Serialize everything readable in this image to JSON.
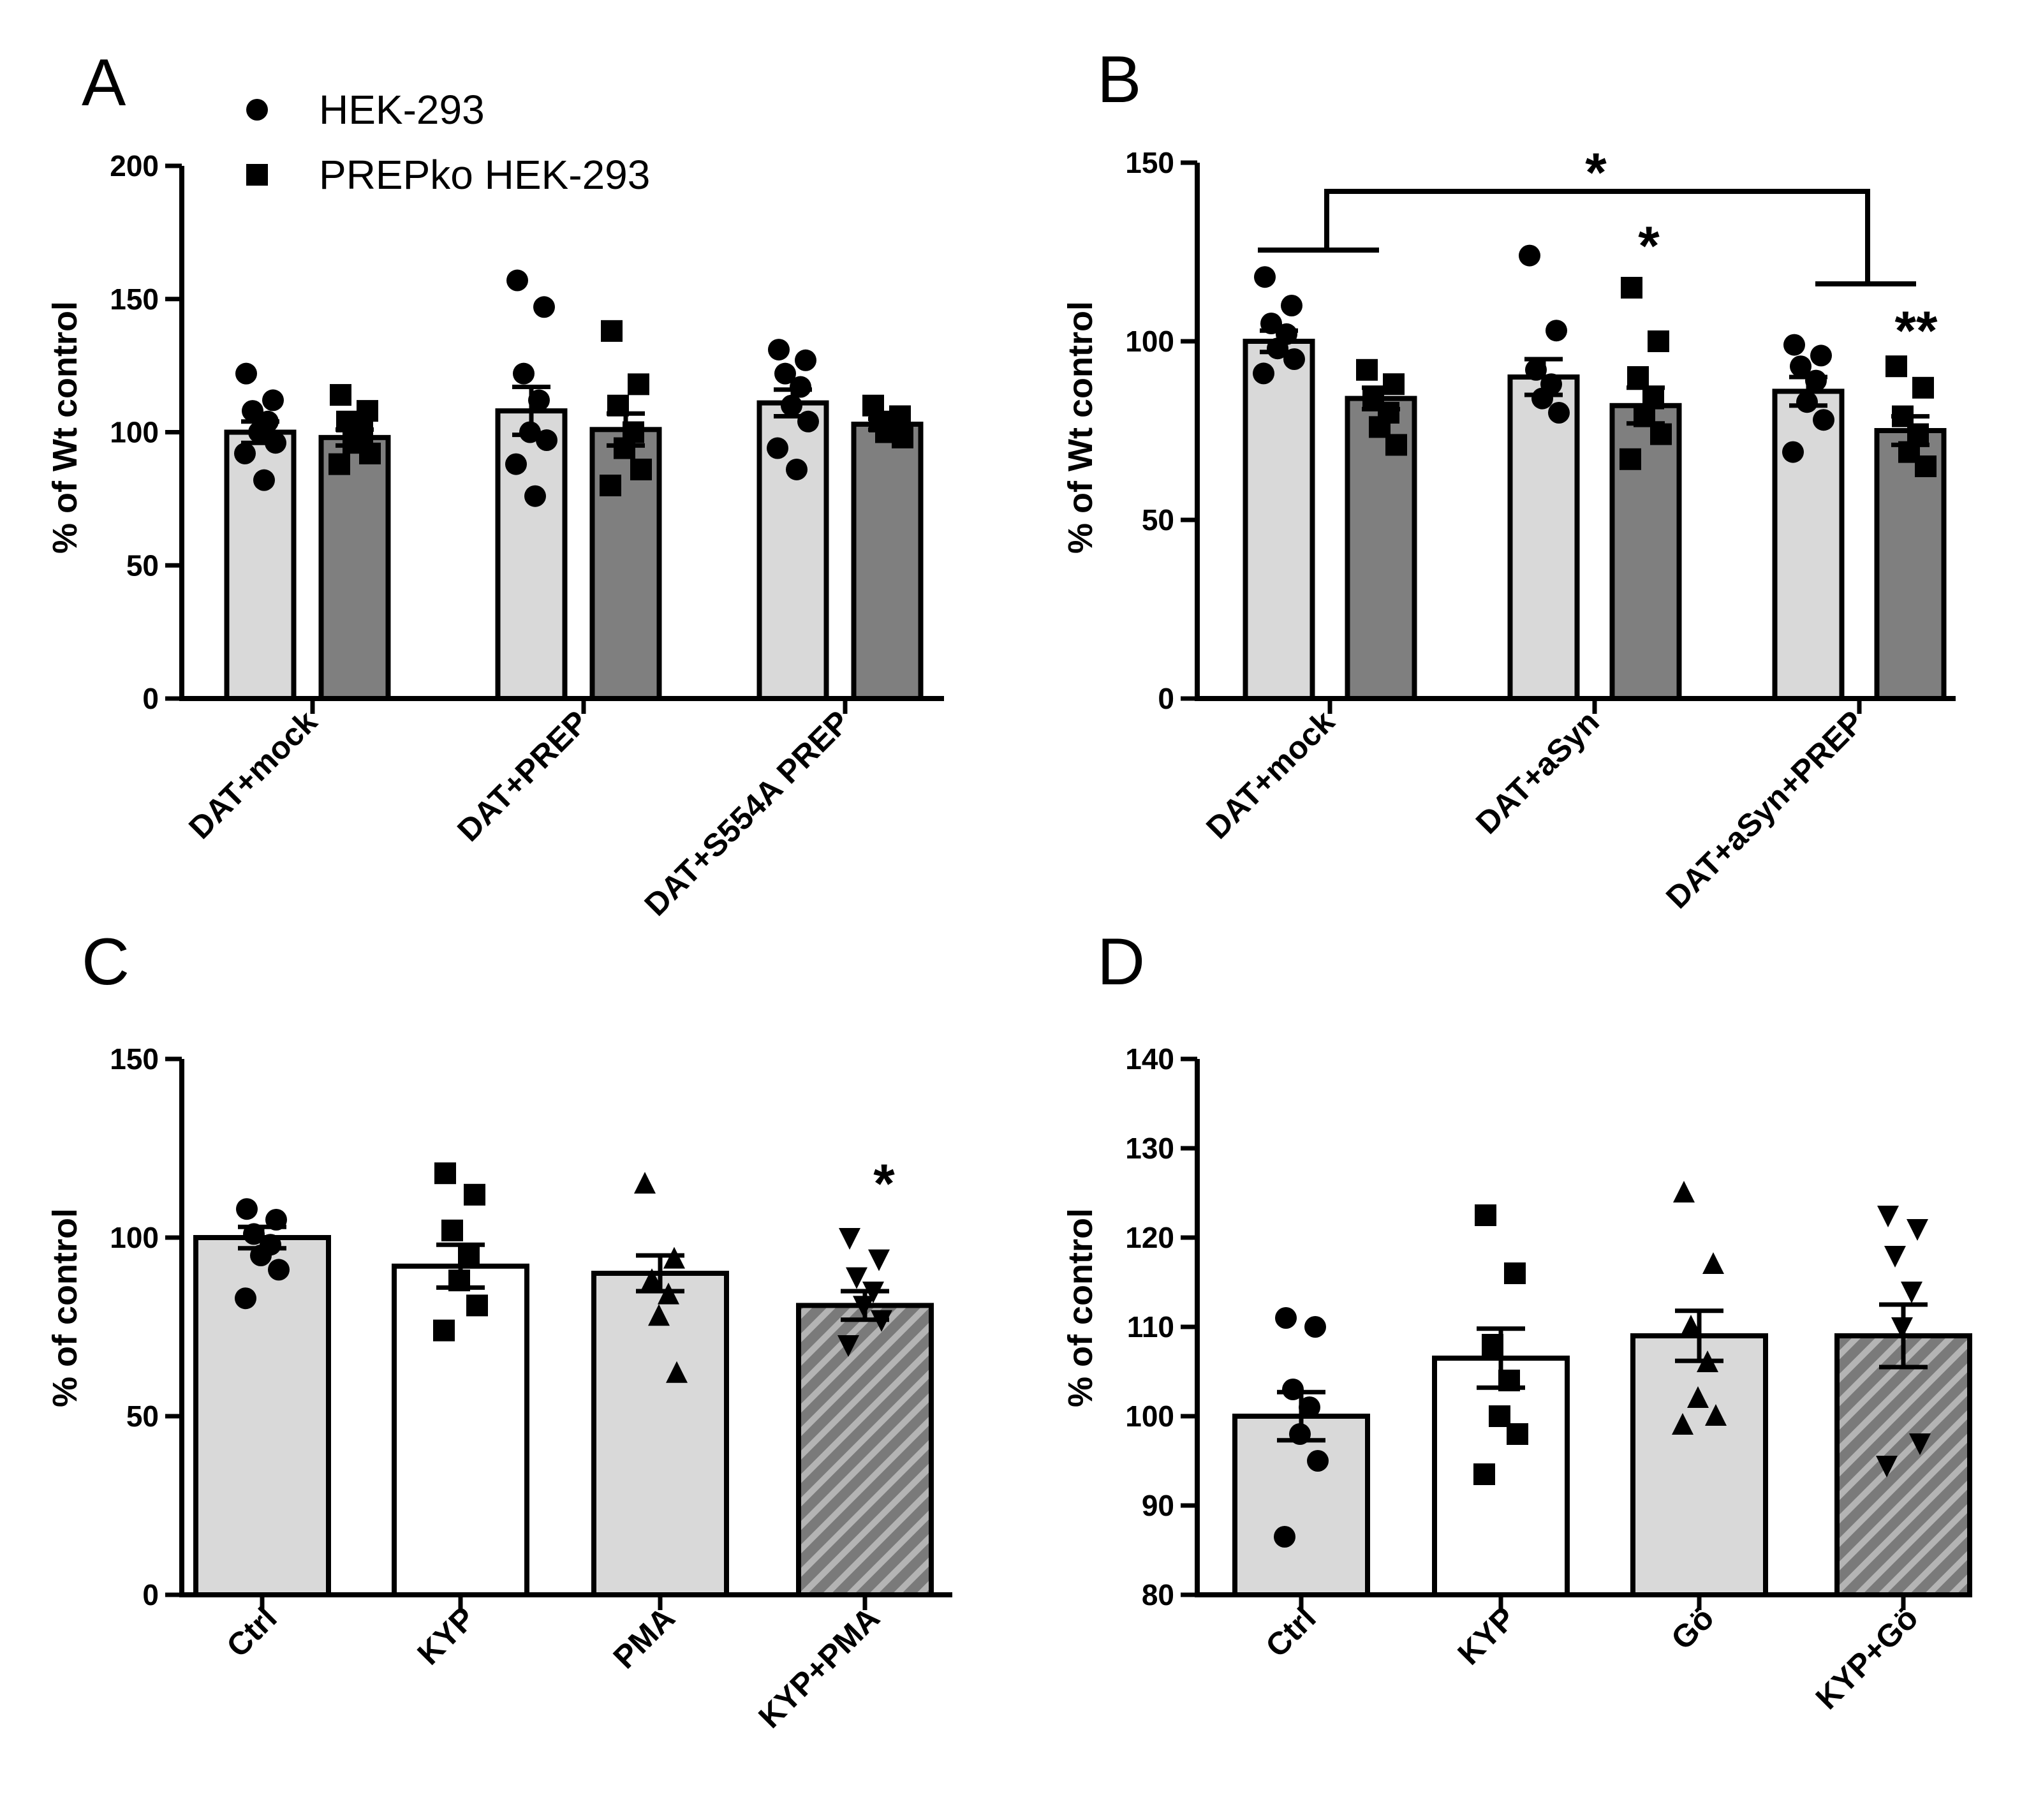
{
  "colors": {
    "hek": "#d9d9d9",
    "prepko": "#7f7f7f",
    "white": "#ffffff",
    "ink": "#000000",
    "hatch_base": "#7a7a7a",
    "hatch_line": "#b4b4b4"
  },
  "chart_data": [
    {
      "panel": "A",
      "type": "bar",
      "ylabel": "% of Wt control",
      "ylim": [
        0,
        200
      ],
      "yticks": [
        "0",
        "50",
        "100",
        "150",
        "200"
      ],
      "categories": [
        "DAT+mock",
        "DAT+PREP",
        "DAT+S554A PREP"
      ],
      "legend": [
        {
          "name": "HEK-293",
          "marker": "circle"
        },
        {
          "name": "PREPko HEK-293",
          "marker": "square"
        }
      ],
      "series": [
        {
          "name": "HEK-293",
          "marker": "circle",
          "fill": "hek",
          "values": [
            100,
            108,
            111
          ],
          "sem": [
            4,
            9,
            5
          ],
          "points": [
            [
              122,
              112,
              108,
              104,
              100,
              96,
              92,
              82
            ],
            [
              157,
              147,
              122,
              112,
              100,
              97,
              88,
              76
            ],
            [
              131,
              127,
              122,
              117,
              110,
              104,
              94,
              86
            ]
          ]
        },
        {
          "name": "PREPko HEK-293",
          "marker": "square",
          "fill": "prepko",
          "values": [
            98,
            101,
            103
          ],
          "sem": [
            3,
            6,
            2
          ],
          "points": [
            [
              114,
              108,
              104,
              100,
              96,
              92,
              88
            ],
            [
              138,
              118,
              110,
              100,
              94,
              86,
              80
            ],
            [
              110,
              106,
              104,
              102,
              100,
              98
            ]
          ]
        }
      ],
      "annotations": []
    },
    {
      "panel": "B",
      "type": "bar",
      "ylabel": "% of Wt control",
      "ylim": [
        0,
        150
      ],
      "yticks": [
        "0",
        "50",
        "100",
        "150"
      ],
      "categories": [
        "DAT+mock",
        "DAT+aSyn",
        "DAT+aSyn+PREP"
      ],
      "series": [
        {
          "name": "HEK-293",
          "marker": "circle",
          "fill": "hek",
          "values": [
            100,
            90,
            86
          ],
          "sem": [
            3,
            5,
            4
          ],
          "points": [
            [
              118,
              110,
              105,
              102,
              98,
              95,
              91
            ],
            [
              124,
              103,
              92,
              88,
              84,
              80
            ],
            [
              99,
              96,
              93,
              89,
              83,
              78,
              69
            ]
          ]
        },
        {
          "name": "PREPko HEK-293",
          "marker": "square",
          "fill": "prepko",
          "values": [
            84,
            82,
            75
          ],
          "sem": [
            3,
            5,
            4
          ],
          "points": [
            [
              92,
              88,
              84,
              80,
              76,
              71
            ],
            [
              115,
              100,
              90,
              84,
              79,
              74,
              67
            ],
            [
              93,
              87,
              79,
              74,
              69,
              65
            ]
          ]
        }
      ],
      "annotations": [
        "*",
        "*",
        "**"
      ]
    },
    {
      "panel": "C",
      "type": "bar",
      "ylabel": "% of control",
      "ylim": [
        0,
        150
      ],
      "yticks": [
        "0",
        "50",
        "100",
        "150"
      ],
      "categories": [
        "Ctrl",
        "KYP",
        "PMA",
        "KYP+PMA"
      ],
      "series": [
        {
          "name": "groups",
          "values": [
            100,
            92,
            90,
            81
          ],
          "sem": [
            3,
            6,
            5,
            4
          ],
          "fills": [
            "hek",
            "white",
            "hek",
            "hatch"
          ],
          "markers": [
            "circle",
            "square",
            "triangle-up",
            "triangle-down"
          ],
          "points": [
            [
              108,
              105,
              101,
              98,
              95,
              91,
              83
            ],
            [
              118,
              112,
              102,
              95,
              88,
              81,
              74
            ],
            [
              115,
              94,
              88,
              84,
              78,
              62
            ],
            [
              100,
              94,
              89,
              85,
              81,
              77,
              70
            ]
          ]
        }
      ],
      "annotations": [
        "*"
      ]
    },
    {
      "panel": "D",
      "type": "bar",
      "ylabel": "% of control",
      "ylim": [
        80,
        140
      ],
      "yticks": [
        "80",
        "90",
        "100",
        "110",
        "120",
        "130",
        "140"
      ],
      "categories": [
        "Ctrl",
        "KYP",
        "Gö",
        "KYP+Gö"
      ],
      "series": [
        {
          "name": "groups",
          "values": [
            100,
            106.5,
            109,
            109
          ],
          "sem": [
            2.7,
            3.3,
            2.8,
            3.5
          ],
          "fills": [
            "hek",
            "white",
            "hek",
            "hatch"
          ],
          "markers": [
            "circle",
            "square",
            "triangle-up",
            "triangle-down"
          ],
          "points": [
            [
              111,
              110,
              103,
              101,
              98,
              95,
              86.5
            ],
            [
              122.5,
              116,
              108,
              104,
              100,
              98,
              93.5
            ],
            [
              125,
              117,
              110,
              106,
              102,
              100,
              99
            ],
            [
              122.5,
              121,
              118,
              114,
              110,
              97,
              94.5
            ]
          ]
        }
      ],
      "annotations": []
    }
  ]
}
